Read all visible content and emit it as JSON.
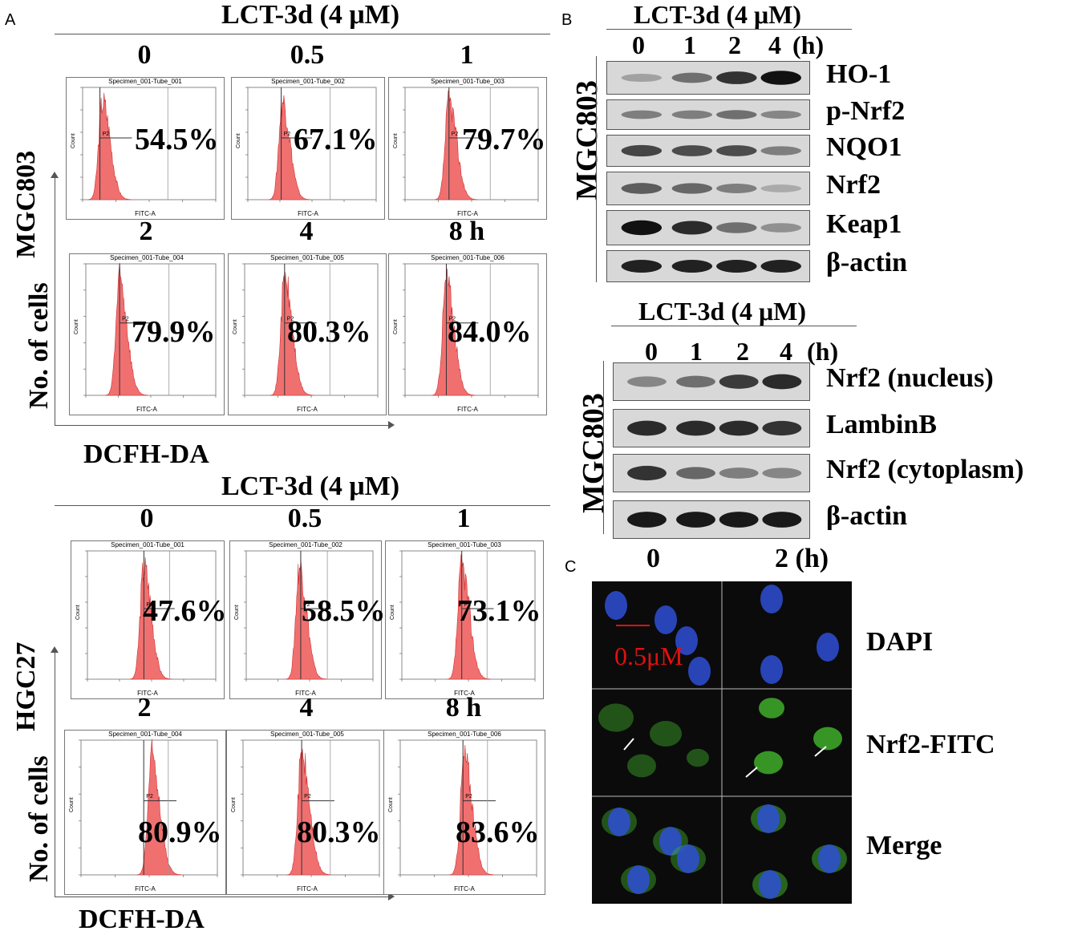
{
  "panelA": {
    "letter": "A",
    "mgc": {
      "title": "LCT-3d (4 μM)",
      "cellLine": "MGC803",
      "ylabel": "No. of cells",
      "xlabel": "DCFH-DA",
      "plots": [
        {
          "time": "0",
          "specimen": "Specimen_001-Tube_001",
          "percent": "54.5%",
          "gate": "P2",
          "xaxis": "FITC-A",
          "yaxis": "Count"
        },
        {
          "time": "0.5",
          "specimen": "Specimen_001-Tube_002",
          "percent": "67.1%",
          "gate": "P2",
          "xaxis": "FITC-A",
          "yaxis": "Count"
        },
        {
          "time": "1",
          "specimen": "Specimen_001-Tube_003",
          "percent": "79.7%",
          "gate": "P2",
          "xaxis": "FITC-A",
          "yaxis": "Count"
        },
        {
          "time": "2",
          "specimen": "Specimen_001-Tube_004",
          "percent": "79.9%",
          "gate": "P2",
          "xaxis": "FITC-A",
          "yaxis": "Count"
        },
        {
          "time": "4",
          "specimen": "Specimen_001-Tube_005",
          "percent": "80.3%",
          "gate": "P2",
          "xaxis": "FITC-A",
          "yaxis": "Count"
        },
        {
          "time": "8 h",
          "specimen": "Specimen_001-Tube_006",
          "percent": "84.0%",
          "gate": "P2",
          "xaxis": "FITC-A",
          "yaxis": "Count"
        }
      ]
    },
    "hgc": {
      "title": "LCT-3d (4 μM)",
      "cellLine": "HGC27",
      "ylabel": "No. of cells",
      "xlabel": "DCFH-DA",
      "plots": [
        {
          "time": "0",
          "specimen": "Specimen_001-Tube_001",
          "percent": "47.6%",
          "gate": "P2",
          "xaxis": "FITC-A",
          "yaxis": "Count"
        },
        {
          "time": "0.5",
          "specimen": "Specimen_001-Tube_002",
          "percent": "58.5%",
          "gate": "P2",
          "xaxis": "FITC-A",
          "yaxis": "Count"
        },
        {
          "time": "1",
          "specimen": "Specimen_001-Tube_003",
          "percent": "73.1%",
          "gate": "P2",
          "xaxis": "FITC-A",
          "yaxis": "Count"
        },
        {
          "time": "2",
          "specimen": "Specimen_001-Tube_004",
          "percent": "80.9%",
          "gate": "P2",
          "xaxis": "FITC-A",
          "yaxis": "Count"
        },
        {
          "time": "4",
          "specimen": "Specimen_001-Tube_005",
          "percent": "80.3%",
          "gate": "P2",
          "xaxis": "FITC-A",
          "yaxis": "Count"
        },
        {
          "time": "8 h",
          "specimen": "Specimen_001-Tube_006",
          "percent": "83.6%",
          "gate": "P2",
          "xaxis": "FITC-A",
          "yaxis": "Count"
        }
      ]
    }
  },
  "panelB": {
    "letter": "B",
    "top": {
      "title": "LCT-3d (4 μM)",
      "cellLine": "MGC803",
      "lanes": [
        "0",
        "1",
        "2",
        "4"
      ],
      "unit": "(h)",
      "proteins": [
        "HO-1",
        "p-Nrf2",
        "NQO1",
        "Nrf2",
        "Keap1",
        "β-actin"
      ]
    },
    "bottom": {
      "title": "LCT-3d (4 μM)",
      "cellLine": "MGC803",
      "lanes": [
        "0",
        "1",
        "2",
        "4"
      ],
      "unit": "(h)",
      "proteins": [
        "Nrf2 (nucleus)",
        "LambinB",
        "Nrf2 (cytoplasm)",
        "β-actin"
      ]
    }
  },
  "panelC": {
    "letter": "C",
    "times": [
      "0",
      "2 (h)"
    ],
    "scale": "0.5μM",
    "rows": [
      "DAPI",
      "Nrf2-FITC",
      "Merge"
    ],
    "colors": {
      "dapi": "#2f4fd6",
      "fitc": "#3fae2a",
      "scale": "#e01010"
    }
  }
}
